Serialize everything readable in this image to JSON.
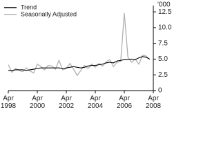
{
  "chart_data": {
    "type": "line",
    "unit_label": "'000",
    "x": [
      1998.25,
      1998.5,
      1998.75,
      1999,
      1999.25,
      1999.5,
      1999.75,
      2000,
      2000.25,
      2000.5,
      2000.75,
      2001,
      2001.25,
      2001.5,
      2001.75,
      2002,
      2002.25,
      2002.5,
      2002.75,
      2003,
      2003.25,
      2003.5,
      2003.75,
      2004,
      2004.25,
      2004.5,
      2004.75,
      2005,
      2005.25,
      2005.5,
      2005.75,
      2006,
      2006.25,
      2006.5,
      2006.75,
      2007,
      2007.25,
      2007.5,
      2007.75,
      2008
    ],
    "series": [
      {
        "name": "Trend",
        "color": "#000000",
        "values": [
          3.2,
          3.2,
          3.3,
          3.3,
          3.3,
          3.2,
          3.3,
          3.4,
          3.5,
          3.6,
          3.6,
          3.6,
          3.6,
          3.6,
          3.6,
          3.5,
          3.6,
          3.7,
          3.8,
          3.7,
          3.6,
          3.7,
          3.9,
          4.0,
          4.0,
          4.1,
          4.2,
          4.4,
          4.5,
          4.4,
          4.7,
          4.8,
          4.9,
          4.9,
          5.0,
          4.9,
          5.2,
          5.4,
          5.3,
          5.0
        ]
      },
      {
        "name": "Seasonally Adjusted",
        "color": "#b0b0b0",
        "values": [
          4.1,
          2.9,
          3.5,
          3.2,
          3.0,
          3.6,
          3.1,
          2.8,
          4.2,
          3.8,
          3.3,
          4.0,
          3.9,
          3.4,
          4.8,
          3.3,
          3.5,
          4.3,
          3.4,
          2.4,
          3.2,
          4.0,
          3.5,
          4.2,
          3.7,
          4.3,
          3.9,
          4.6,
          4.9,
          3.8,
          4.5,
          4.6,
          12.3,
          5.3,
          4.5,
          5.0,
          4.2,
          5.6,
          5.5,
          4.9
        ]
      }
    ],
    "xlim": [
      1998.25,
      2008.25
    ],
    "xticks": [
      {
        "value": 1998.25,
        "label": "Apr\n1998"
      },
      {
        "value": 2000.25,
        "label": "Apr\n2000"
      },
      {
        "value": 2002.25,
        "label": "Apr\n2002"
      },
      {
        "value": 2004.25,
        "label": "Apr\n2004"
      },
      {
        "value": 2006.25,
        "label": "Apr\n2006"
      },
      {
        "value": 2008.25,
        "label": "Apr\n2008"
      }
    ],
    "ylim": [
      0,
      13.5
    ],
    "yticks": [
      0,
      {
        "value": 2.5,
        "label": "2.5"
      },
      {
        "value": 5,
        "label": "5.0"
      },
      {
        "value": 7.5,
        "label": "7.5"
      },
      {
        "value": 10,
        "label": "10.0"
      },
      {
        "value": 12.5,
        "label": "12.5"
      }
    ]
  }
}
